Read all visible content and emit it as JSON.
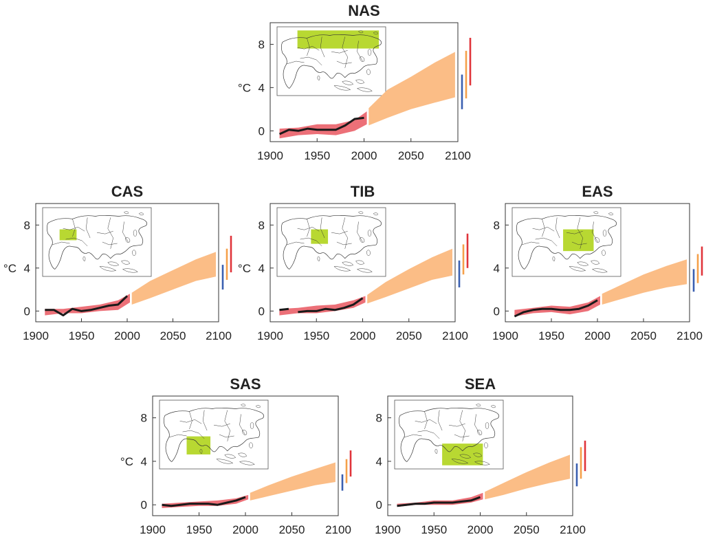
{
  "chart_data": [
    {
      "type": "line",
      "title": "NAS",
      "ylabel": "°C",
      "xlim": [
        1900,
        2100
      ],
      "ylim": [
        -1,
        10
      ],
      "xticks": [
        1900,
        1950,
        2000,
        2050,
        2100
      ],
      "yticks": [
        0,
        4,
        8
      ],
      "grid": false,
      "observed": {
        "x": [
          1910,
          1920,
          1930,
          1940,
          1950,
          1960,
          1970,
          1980,
          1990,
          2000
        ],
        "y": [
          -0.3,
          0.1,
          0.0,
          0.2,
          0.1,
          0.1,
          0.1,
          0.5,
          1.1,
          1.2
        ],
        "gaps": []
      },
      "historical_range": {
        "x": [
          1910,
          1930,
          1950,
          1970,
          1990,
          2003
        ],
        "low": [
          -0.7,
          -0.4,
          -0.3,
          -0.4,
          0.0,
          0.6
        ],
        "high": [
          0.2,
          0.3,
          0.6,
          0.6,
          1.0,
          1.8
        ]
      },
      "projection_range": {
        "x": [
          2005,
          2025,
          2050,
          2075,
          2097
        ],
        "low": [
          0.5,
          1.2,
          2.0,
          2.6,
          3.1
        ],
        "high": [
          2.1,
          3.8,
          5.0,
          6.3,
          7.3
        ]
      },
      "end_bars": [
        {
          "color": "#3a5fb0",
          "low": 2.0,
          "high": 5.2
        },
        {
          "color": "#f5a04a",
          "low": 3.0,
          "high": 7.4
        },
        {
          "color": "#e0343a",
          "low": 4.2,
          "high": 8.6
        }
      ],
      "region_box": {
        "lon": [
          55,
          175
        ],
        "lat": [
          50,
          75
        ]
      }
    },
    {
      "type": "line",
      "title": "CAS",
      "ylabel": "°C",
      "xlim": [
        1900,
        2100
      ],
      "ylim": [
        -1,
        10
      ],
      "xticks": [
        1900,
        1950,
        2000,
        2050,
        2100
      ],
      "yticks": [
        0,
        4,
        8
      ],
      "grid": false,
      "observed": {
        "x": [
          1910,
          1920,
          1930,
          1940,
          1950,
          1960,
          1970,
          1980,
          1990,
          2000
        ],
        "y": [
          0.1,
          0.1,
          -0.4,
          0.2,
          0.0,
          0.1,
          0.3,
          0.5,
          0.6,
          1.4
        ],
        "gaps": []
      },
      "historical_range": {
        "x": [
          1910,
          1930,
          1950,
          1970,
          1990,
          2003
        ],
        "low": [
          -0.4,
          -0.2,
          -0.2,
          0.0,
          0.1,
          0.8
        ],
        "high": [
          0.2,
          0.2,
          0.4,
          0.6,
          1.0,
          1.6
        ]
      },
      "projection_range": {
        "x": [
          2005,
          2025,
          2050,
          2075,
          2097
        ],
        "low": [
          0.6,
          1.2,
          2.0,
          2.8,
          3.2
        ],
        "high": [
          1.7,
          2.8,
          3.8,
          4.8,
          5.5
        ]
      },
      "end_bars": [
        {
          "color": "#3a5fb0",
          "low": 2.0,
          "high": 4.3
        },
        {
          "color": "#f5a04a",
          "low": 2.9,
          "high": 5.8
        },
        {
          "color": "#e0343a",
          "low": 3.6,
          "high": 7.0
        }
      ],
      "region_box": {
        "lon": [
          50,
          75
        ],
        "lat": [
          35,
          50
        ]
      }
    },
    {
      "type": "line",
      "title": "TIB",
      "ylabel": "°C",
      "xlim": [
        1900,
        2100
      ],
      "ylim": [
        -1,
        10
      ],
      "xticks": [
        1900,
        1950,
        2000,
        2050,
        2100
      ],
      "yticks": [
        0,
        4,
        8
      ],
      "grid": false,
      "observed": {
        "x": [
          1910,
          1920,
          1930,
          1940,
          1950,
          1960,
          1970,
          1980,
          1990,
          2000
        ],
        "y": [
          0.1,
          0.2,
          -0.1,
          0.0,
          0.0,
          0.2,
          0.1,
          0.3,
          0.6,
          1.2
        ],
        "gaps": [
          [
            1920,
            1930
          ],
          [
            1940,
            1945
          ]
        ]
      },
      "historical_range": {
        "x": [
          1910,
          1930,
          1950,
          1970,
          1990,
          2003
        ],
        "low": [
          -0.4,
          -0.2,
          -0.2,
          0.0,
          0.3,
          0.8
        ],
        "high": [
          0.2,
          0.3,
          0.5,
          0.6,
          1.0,
          1.4
        ]
      },
      "projection_range": {
        "x": [
          2005,
          2025,
          2050,
          2075,
          2097
        ],
        "low": [
          0.7,
          1.3,
          2.1,
          2.9,
          3.3
        ],
        "high": [
          1.5,
          2.7,
          3.9,
          5.0,
          5.8
        ]
      },
      "end_bars": [
        {
          "color": "#3a5fb0",
          "low": 2.2,
          "high": 4.7
        },
        {
          "color": "#f5a04a",
          "low": 3.4,
          "high": 6.2
        },
        {
          "color": "#e0343a",
          "low": 4.0,
          "high": 7.2
        }
      ],
      "region_box": {
        "lon": [
          75,
          100
        ],
        "lat": [
          30,
          50
        ]
      }
    },
    {
      "type": "line",
      "title": "EAS",
      "ylabel": "",
      "xlim": [
        1900,
        2100
      ],
      "ylim": [
        -1,
        10
      ],
      "xticks": [
        1900,
        1950,
        2000,
        2050,
        2100
      ],
      "yticks": [
        0,
        4,
        8
      ],
      "grid": false,
      "observed": {
        "x": [
          1910,
          1920,
          1930,
          1940,
          1950,
          1960,
          1970,
          1980,
          1990,
          2000
        ],
        "y": [
          -0.5,
          -0.1,
          0.1,
          0.2,
          0.2,
          0.1,
          0.1,
          0.2,
          0.5,
          1.0
        ],
        "gaps": []
      },
      "historical_range": {
        "x": [
          1910,
          1930,
          1950,
          1970,
          1990,
          2003
        ],
        "low": [
          -0.5,
          -0.2,
          -0.1,
          -0.3,
          0.0,
          0.6
        ],
        "high": [
          0.1,
          0.3,
          0.5,
          0.4,
          0.8,
          1.4
        ]
      },
      "projection_range": {
        "x": [
          2005,
          2025,
          2050,
          2075,
          2097
        ],
        "low": [
          0.6,
          1.1,
          1.7,
          2.2,
          2.5
        ],
        "high": [
          1.6,
          2.4,
          3.4,
          4.2,
          4.8
        ]
      },
      "end_bars": [
        {
          "color": "#3a5fb0",
          "low": 1.8,
          "high": 3.9
        },
        {
          "color": "#f5a04a",
          "low": 2.6,
          "high": 5.3
        },
        {
          "color": "#e0343a",
          "low": 3.3,
          "high": 6.0
        }
      ],
      "region_box": {
        "lon": [
          100,
          145
        ],
        "lat": [
          20,
          50
        ]
      }
    },
    {
      "type": "line",
      "title": "SAS",
      "ylabel": "°C",
      "xlim": [
        1900,
        2100
      ],
      "ylim": [
        -1,
        10
      ],
      "xticks": [
        1900,
        1950,
        2000,
        2050,
        2100
      ],
      "yticks": [
        0,
        4,
        8
      ],
      "grid": false,
      "observed": {
        "x": [
          1910,
          1920,
          1930,
          1940,
          1950,
          1960,
          1970,
          1980,
          1990,
          2000
        ],
        "y": [
          0.0,
          -0.1,
          0.0,
          0.1,
          0.1,
          0.1,
          0.0,
          0.2,
          0.4,
          0.7
        ],
        "gaps": [
          [
            1920,
            1925
          ],
          [
            1935,
            1940
          ]
        ]
      },
      "historical_range": {
        "x": [
          1910,
          1930,
          1950,
          1970,
          1990,
          2003
        ],
        "low": [
          -0.3,
          -0.2,
          -0.1,
          -0.1,
          0.1,
          0.5
        ],
        "high": [
          0.1,
          0.2,
          0.3,
          0.4,
          0.6,
          0.9
        ]
      },
      "projection_range": {
        "x": [
          2005,
          2025,
          2050,
          2075,
          2097
        ],
        "low": [
          0.4,
          0.8,
          1.3,
          1.8,
          2.1
        ],
        "high": [
          1.1,
          1.8,
          2.6,
          3.3,
          3.9
        ]
      },
      "end_bars": [
        {
          "color": "#3a5fb0",
          "low": 1.3,
          "high": 2.8
        },
        {
          "color": "#f5a04a",
          "low": 2.0,
          "high": 4.2
        },
        {
          "color": "#e0343a",
          "low": 2.6,
          "high": 5.0
        }
      ],
      "region_box": {
        "lon": [
          65,
          100
        ],
        "lat": [
          5,
          30
        ]
      }
    },
    {
      "type": "line",
      "title": "SEA",
      "ylabel": "",
      "xlim": [
        1900,
        2100
      ],
      "ylim": [
        -1,
        10
      ],
      "xticks": [
        1900,
        1950,
        2000,
        2050,
        2100
      ],
      "yticks": [
        0,
        4,
        8
      ],
      "grid": false,
      "observed": {
        "x": [
          1910,
          1920,
          1930,
          1940,
          1950,
          1960,
          1970,
          1980,
          1990,
          2000
        ],
        "y": [
          -0.1,
          0.0,
          0.1,
          0.1,
          0.2,
          0.2,
          0.2,
          0.3,
          0.4,
          0.7
        ],
        "gaps": []
      },
      "historical_range": {
        "x": [
          1910,
          1930,
          1950,
          1970,
          1990,
          2003
        ],
        "low": [
          -0.2,
          0.0,
          0.0,
          0.0,
          0.2,
          0.5
        ],
        "high": [
          0.1,
          0.2,
          0.4,
          0.4,
          0.7,
          1.1
        ]
      },
      "projection_range": {
        "x": [
          2005,
          2025,
          2050,
          2075,
          2097
        ],
        "low": [
          0.5,
          0.9,
          1.5,
          2.0,
          2.4
        ],
        "high": [
          1.2,
          2.0,
          3.0,
          3.9,
          4.6
        ]
      },
      "end_bars": [
        {
          "color": "#3a5fb0",
          "low": 1.7,
          "high": 3.8
        },
        {
          "color": "#f5a04a",
          "low": 2.4,
          "high": 5.3
        },
        {
          "color": "#e0343a",
          "low": 3.1,
          "high": 5.9
        }
      ],
      "region_box": {
        "lon": [
          95,
          155
        ],
        "lat": [
          -10,
          20
        ]
      }
    }
  ]
}
